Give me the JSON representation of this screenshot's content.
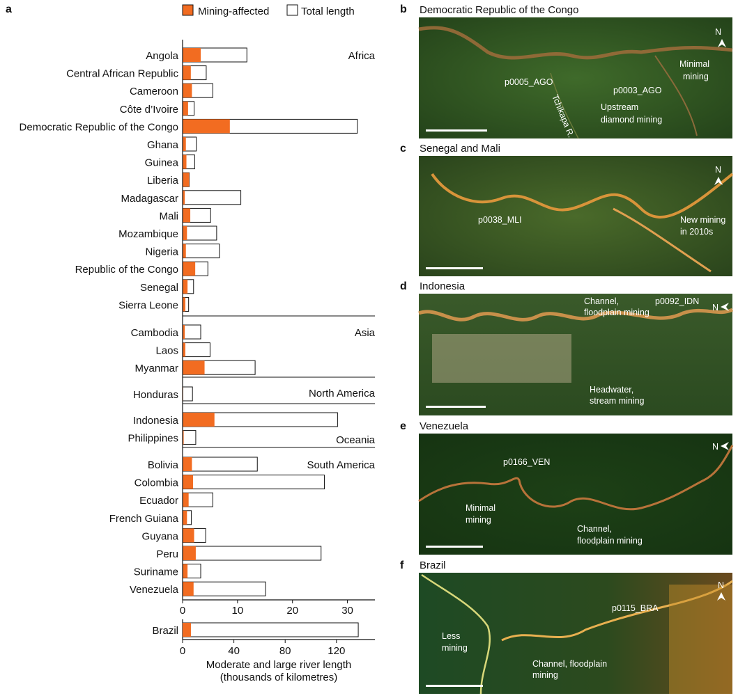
{
  "panel_a": {
    "letter": "a"
  },
  "chart_data": {
    "type": "bar",
    "legend": {
      "items": [
        "Mining-affected",
        "Total length"
      ],
      "placement": "top"
    },
    "colors": {
      "mining": "#f26c21",
      "total": "#ffffff",
      "outline": "#111111"
    },
    "xlabel": "Moderate and large river length",
    "xlabel_unit": "(thousands of kilometres)",
    "groups": [
      {
        "name": "Africa",
        "categories": [
          {
            "label": "Angola",
            "mining": 3.3,
            "total": 11.7
          },
          {
            "label": "Central African Republic",
            "mining": 1.5,
            "total": 4.3
          },
          {
            "label": "Cameroon",
            "mining": 1.7,
            "total": 5.5
          },
          {
            "label": "Côte d’Ivoire",
            "mining": 1.0,
            "total": 2.1
          },
          {
            "label": "Democratic Republic of the Congo",
            "mining": 8.6,
            "total": 31.8
          },
          {
            "label": "Ghana",
            "mining": 0.6,
            "total": 2.5
          },
          {
            "label": "Guinea",
            "mining": 0.7,
            "total": 2.2
          },
          {
            "label": "Liberia",
            "mining": 1.2,
            "total": 1.2
          },
          {
            "label": "Madagascar",
            "mining": 0.4,
            "total": 10.6
          },
          {
            "label": "Mali",
            "mining": 1.4,
            "total": 5.1
          },
          {
            "label": "Mozambique",
            "mining": 0.8,
            "total": 6.2
          },
          {
            "label": "Nigeria",
            "mining": 0.6,
            "total": 6.7
          },
          {
            "label": "Republic of the Congo",
            "mining": 2.3,
            "total": 4.6
          },
          {
            "label": "Senegal",
            "mining": 0.9,
            "total": 2.0
          },
          {
            "label": "Sierra Leone",
            "mining": 0.5,
            "total": 1.1
          }
        ]
      },
      {
        "name": "Asia",
        "categories": [
          {
            "label": "Cambodia",
            "mining": 0.4,
            "total": 3.3
          },
          {
            "label": "Laos",
            "mining": 0.5,
            "total": 5.0
          },
          {
            "label": "Myanmar",
            "mining": 4.0,
            "total": 13.2
          }
        ]
      },
      {
        "name": "North America",
        "categories": [
          {
            "label": "Honduras",
            "mining": 0.1,
            "total": 1.8
          }
        ]
      },
      {
        "name": "Oceania",
        "categories": [
          {
            "label": "Indonesia",
            "mining": 5.8,
            "total": 28.2
          },
          {
            "label": "Philippines",
            "mining": 0.2,
            "total": 2.4
          }
        ]
      },
      {
        "name": "South America",
        "categories": [
          {
            "label": "Bolivia",
            "mining": 1.7,
            "total": 13.6
          },
          {
            "label": "Colombia",
            "mining": 1.9,
            "total": 25.8
          },
          {
            "label": "Ecuador",
            "mining": 1.1,
            "total": 5.5
          },
          {
            "label": "French Guiana",
            "mining": 0.8,
            "total": 1.6
          },
          {
            "label": "Guyana",
            "mining": 2.1,
            "total": 4.2
          },
          {
            "label": "Peru",
            "mining": 2.4,
            "total": 25.2
          },
          {
            "label": "Suriname",
            "mining": 0.9,
            "total": 3.3
          },
          {
            "label": "Venezuela",
            "mining": 2.0,
            "total": 15.1
          }
        ]
      }
    ],
    "axis_main": {
      "range": [
        0,
        35
      ],
      "ticks": [
        0,
        10,
        20,
        30
      ]
    },
    "brazil": {
      "label": "Brazil",
      "mining": 6.5,
      "total": 137.0
    },
    "axis_brazil": {
      "range": [
        0,
        150
      ],
      "ticks": [
        0,
        40,
        80,
        120
      ]
    }
  },
  "maps": [
    {
      "letter": "b",
      "title": "Democratic Republic of the Congo",
      "compass": "N",
      "annotations": [
        "p0005_AGO",
        "p0003_AGO",
        "Minimal",
        "mining",
        "Upstream",
        "diamond mining",
        "Tchikapa R."
      ]
    },
    {
      "letter": "c",
      "title": "Senegal and Mali",
      "compass": "N",
      "annotations": [
        "p0038_MLI",
        "New mining",
        "in 2010s"
      ]
    },
    {
      "letter": "d",
      "title": "Indonesia",
      "compass": "N",
      "annotations": [
        "Channel,",
        "floodplain mining",
        "p0092_IDN",
        "Headwater,",
        "stream mining"
      ]
    },
    {
      "letter": "e",
      "title": "Venezuela",
      "compass": "N",
      "annotations": [
        "p0166_VEN",
        "Minimal",
        "mining",
        "Channel,",
        "floodplain mining"
      ]
    },
    {
      "letter": "f",
      "title": "Brazil",
      "compass": "N",
      "annotations": [
        "p0115_BRA",
        "Less",
        "mining",
        "Channel, floodplain",
        "mining"
      ]
    }
  ]
}
